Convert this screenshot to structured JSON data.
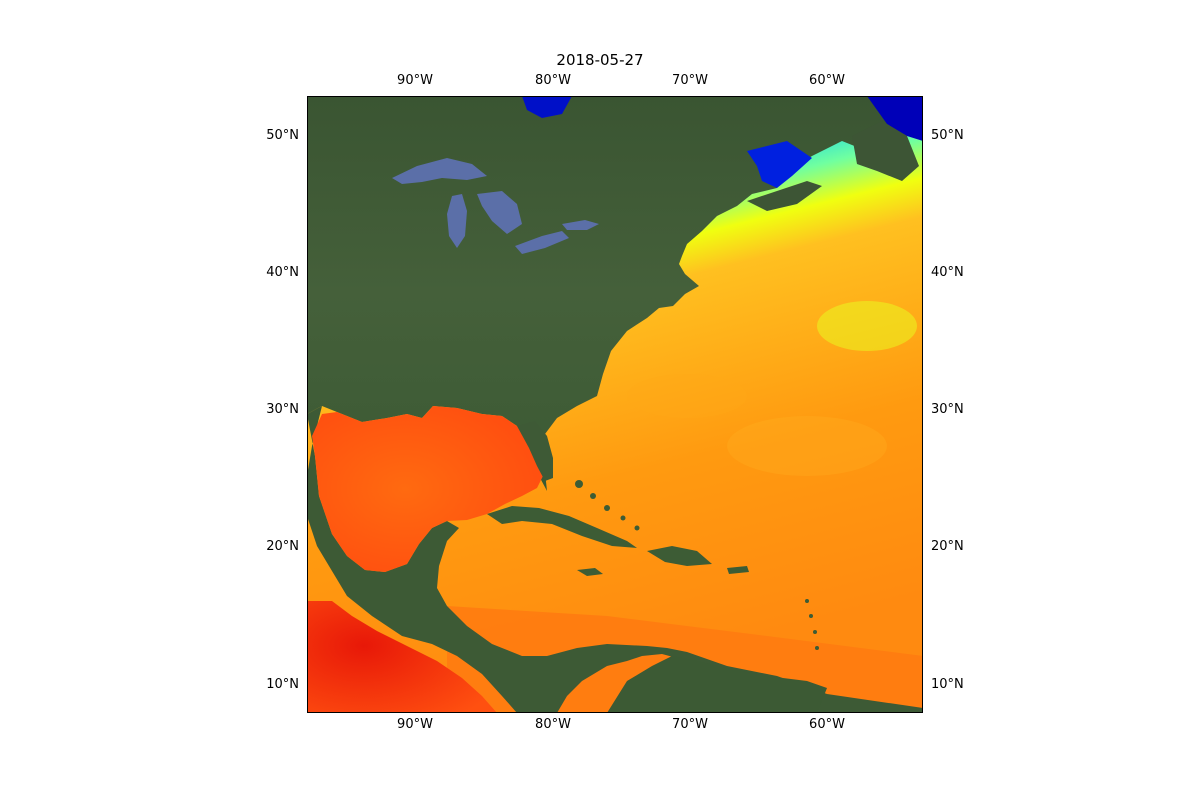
{
  "title": "2018-05-27",
  "longitude_ticks": [
    "90°W",
    "80°W",
    "70°W",
    "60°W"
  ],
  "latitude_ticks": [
    "50°N",
    "40°N",
    "30°N",
    "20°N",
    "10°N"
  ],
  "extent": {
    "lon_min": -98,
    "lon_max": -53,
    "lat_min": 8,
    "lat_max": 53
  },
  "colors": {
    "land": "#3f5a35",
    "lakes": "#5b6fa8",
    "sst_cold": "#0000c8",
    "sst_cool": "#00b4ff",
    "sst_mild": "#d8ff10",
    "sst_warm": "#ff9a10",
    "sst_hot": "#ff3010"
  }
}
